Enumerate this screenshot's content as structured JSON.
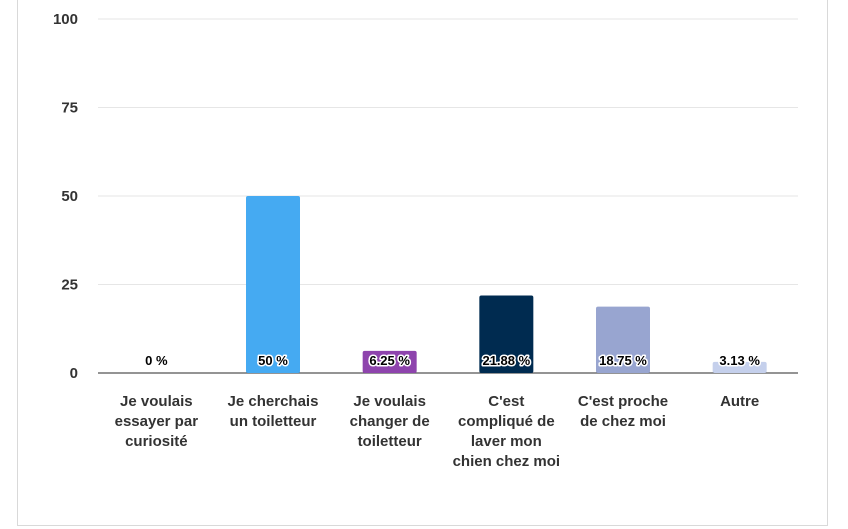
{
  "chart_data": {
    "type": "bar",
    "title": "",
    "xlabel": "",
    "ylabel": "",
    "ylim": [
      0,
      100
    ],
    "yticks": [
      0,
      25,
      50,
      75,
      100
    ],
    "grid": true,
    "legend": "none",
    "categories": [
      "Je voulais essayer par curiosité",
      "Je cherchais un toiletteur",
      "Je voulais changer de toiletteur",
      "C'est compliqué de laver mon chien chez moi",
      "C'est proche de chez moi",
      "Autre"
    ],
    "values": [
      0,
      50,
      6.25,
      21.88,
      18.75,
      3.13
    ],
    "data_labels": [
      "0 %",
      "50 %",
      "6.25 %",
      "21.88 %",
      "18.75 %",
      "3.13 %"
    ],
    "colors": [
      "#5b9bd5",
      "#45aaf2",
      "#8e44ad",
      "#002b50",
      "#98a5d0",
      "#c5d0ec"
    ]
  }
}
